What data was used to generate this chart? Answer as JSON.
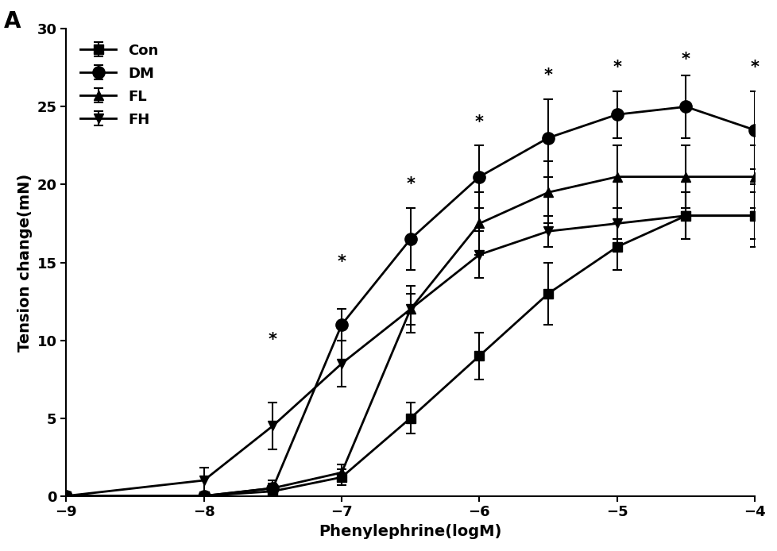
{
  "x_values": [
    -9,
    -8,
    -7.5,
    -7,
    -6.5,
    -6,
    -5.5,
    -5,
    -4.5,
    -4
  ],
  "Con_y": [
    0,
    0.0,
    0.3,
    1.2,
    5.0,
    9.0,
    13.0,
    16.0,
    18.0,
    18.0
  ],
  "Con_err": [
    0,
    0.1,
    0.3,
    0.5,
    1.0,
    1.5,
    2.0,
    1.5,
    1.5,
    2.0
  ],
  "DM_y": [
    0,
    0.0,
    0.5,
    11.0,
    16.5,
    20.5,
    23.0,
    24.5,
    25.0,
    23.5
  ],
  "DM_err": [
    0,
    0.1,
    0.5,
    1.0,
    2.0,
    2.0,
    2.5,
    1.5,
    2.0,
    2.5
  ],
  "FL_y": [
    0,
    0.0,
    0.5,
    1.5,
    12.0,
    17.5,
    19.5,
    20.5,
    20.5,
    20.5
  ],
  "FL_err": [
    0,
    0.1,
    0.3,
    0.5,
    1.5,
    2.0,
    2.0,
    2.0,
    2.0,
    2.0
  ],
  "FH_y": [
    0,
    1.0,
    4.5,
    8.5,
    12.0,
    15.5,
    17.0,
    17.5,
    18.0,
    18.0
  ],
  "FH_err": [
    0,
    0.8,
    1.5,
    1.5,
    1.0,
    1.5,
    1.0,
    1.0,
    1.5,
    1.5
  ],
  "star_positions": [
    [
      -7.5,
      9.5
    ],
    [
      -7,
      14.5
    ],
    [
      -6.5,
      19.5
    ],
    [
      -6,
      23.5
    ],
    [
      -5.5,
      26.5
    ],
    [
      -5,
      27.0
    ],
    [
      -4.5,
      27.5
    ],
    [
      -4,
      27.0
    ]
  ],
  "xlabel": "Phenylephrine(logM)",
  "ylabel": "Tension change(mN)",
  "panel_label": "A",
  "ylim": [
    0,
    30
  ],
  "xlim": [
    -9,
    -4
  ],
  "yticks": [
    0,
    5,
    10,
    15,
    20,
    25,
    30
  ],
  "xticks": [
    -9,
    -8,
    -7,
    -6,
    -5,
    -4
  ],
  "color": "#000000",
  "linewidth": 2.0,
  "markersize": 9
}
